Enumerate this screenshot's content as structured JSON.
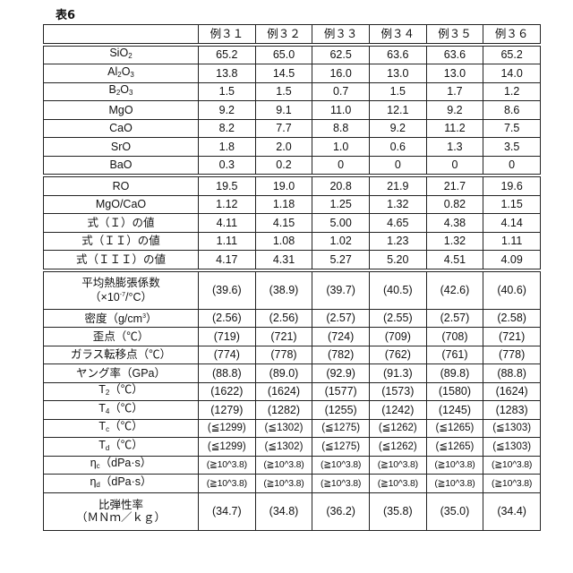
{
  "title": "表6",
  "columns": [
    "例３１",
    "例３２",
    "例３３",
    "例３４",
    "例３５",
    "例３６"
  ],
  "rows": [
    {
      "label": [
        [
          "SiO"
        ],
        [
          "2",
          "sub"
        ]
      ],
      "values": [
        "65.2",
        "65.0",
        "62.5",
        "63.6",
        "63.6",
        "65.2"
      ]
    },
    {
      "label": [
        [
          "Al"
        ],
        [
          "2",
          "sub"
        ],
        [
          "O"
        ],
        [
          "3",
          "sub"
        ]
      ],
      "values": [
        "13.8",
        "14.5",
        "16.0",
        "13.0",
        "13.0",
        "14.0"
      ]
    },
    {
      "label": [
        [
          "B"
        ],
        [
          "2",
          "sub"
        ],
        [
          "O"
        ],
        [
          "3",
          "sub"
        ]
      ],
      "values": [
        "1.5",
        "1.5",
        "0.7",
        "1.5",
        "1.7",
        "1.2"
      ]
    },
    {
      "label": [
        [
          "MgO"
        ]
      ],
      "values": [
        "9.2",
        "9.1",
        "11.0",
        "12.1",
        "9.2",
        "8.6"
      ]
    },
    {
      "label": [
        [
          "CaO"
        ]
      ],
      "values": [
        "8.2",
        "7.7",
        "8.8",
        "9.2",
        "11.2",
        "7.5"
      ]
    },
    {
      "label": [
        [
          "SrO"
        ]
      ],
      "values": [
        "1.8",
        "2.0",
        "1.0",
        "0.6",
        "1.3",
        "3.5"
      ]
    },
    {
      "label": [
        [
          "BaO"
        ]
      ],
      "values": [
        "0.3",
        "0.2",
        "0",
        "0",
        "0",
        "0"
      ]
    },
    {
      "label": [
        [
          "RO"
        ]
      ],
      "values": [
        "19.5",
        "19.0",
        "20.8",
        "21.9",
        "21.7",
        "19.6"
      ],
      "sep": true
    },
    {
      "label": [
        [
          "MgO/CaO"
        ]
      ],
      "values": [
        "1.12",
        "1.18",
        "1.25",
        "1.32",
        "0.82",
        "1.15"
      ]
    },
    {
      "label": [
        [
          "式（Ｉ）の値"
        ]
      ],
      "values": [
        "4.11",
        "4.15",
        "5.00",
        "4.65",
        "4.38",
        "4.14"
      ]
    },
    {
      "label": [
        [
          "式（ＩＩ）の値"
        ]
      ],
      "values": [
        "1.11",
        "1.08",
        "1.02",
        "1.23",
        "1.32",
        "1.11"
      ]
    },
    {
      "label": [
        [
          "式（ＩＩＩ）の値"
        ]
      ],
      "values": [
        "4.17",
        "4.31",
        "5.27",
        "5.20",
        "4.51",
        "4.09"
      ]
    },
    {
      "label": [
        [
          "平均熱膨張係数"
        ],
        [
          "",
          "br"
        ],
        [
          "（×10"
        ],
        [
          "-7",
          "sup"
        ],
        [
          "/°C）"
        ]
      ],
      "values": [
        "(39.6)",
        "(38.9)",
        "(39.7)",
        "(40.5)",
        "(42.6)",
        "(40.6)"
      ],
      "sep": true,
      "double": true
    },
    {
      "label": [
        [
          "密度（g/cm"
        ],
        [
          "3",
          "sup"
        ],
        [
          "）"
        ]
      ],
      "values": [
        "(2.56)",
        "(2.56)",
        "(2.57)",
        "(2.55)",
        "(2.57)",
        "(2.58)"
      ]
    },
    {
      "label": [
        [
          "歪点（℃）"
        ]
      ],
      "values": [
        "(719)",
        "(721)",
        "(724)",
        "(709)",
        "(708)",
        "(721)"
      ]
    },
    {
      "label": [
        [
          "ガラス転移点（℃）"
        ]
      ],
      "values": [
        "(774)",
        "(778)",
        "(782)",
        "(762)",
        "(761)",
        "(778)"
      ]
    },
    {
      "label": [
        [
          "ヤング率（GPa）"
        ]
      ],
      "values": [
        "(88.8)",
        "(89.0)",
        "(92.9)",
        "(91.3)",
        "(89.8)",
        "(88.8)"
      ]
    },
    {
      "label": [
        [
          "T"
        ],
        [
          "2",
          "sub"
        ],
        [
          "（℃）"
        ]
      ],
      "values": [
        "(1622)",
        "(1624)",
        "(1577)",
        "(1573)",
        "(1580)",
        "(1624)"
      ]
    },
    {
      "label": [
        [
          "T"
        ],
        [
          "4",
          "sub"
        ],
        [
          "（℃）"
        ]
      ],
      "values": [
        "(1279)",
        "(1282)",
        "(1255)",
        "(1242)",
        "(1245)",
        "(1283)"
      ]
    },
    {
      "label": [
        [
          "T"
        ],
        [
          "c",
          "sub"
        ],
        [
          "（℃）"
        ]
      ],
      "values": [
        "(≦1299)",
        "(≦1302)",
        "(≦1275)",
        "(≦1262)",
        "(≦1265)",
        "(≦1303)"
      ]
    },
    {
      "label": [
        [
          "T"
        ],
        [
          "d",
          "sub"
        ],
        [
          "（℃）"
        ]
      ],
      "values": [
        "(≦1299)",
        "(≦1302)",
        "(≦1275)",
        "(≦1262)",
        "(≦1265)",
        "(≦1303)"
      ]
    },
    {
      "label": [
        [
          "η"
        ],
        [
          "c",
          "sub"
        ],
        [
          "（dPa·s）"
        ]
      ],
      "values": [
        "(≧10^3.8)",
        "(≧10^3.8)",
        "(≧10^3.8)",
        "(≧10^3.8)",
        "(≧10^3.8)",
        "(≧10^3.8)"
      ]
    },
    {
      "label": [
        [
          "η"
        ],
        [
          "d",
          "sub"
        ],
        [
          "（dPa·s）"
        ]
      ],
      "values": [
        "(≧10^3.8)",
        "(≧10^3.8)",
        "(≧10^3.8)",
        "(≧10^3.8)",
        "(≧10^3.8)",
        "(≧10^3.8)"
      ]
    },
    {
      "label": [
        [
          "比弾性率"
        ],
        [
          "",
          "br"
        ],
        [
          "（ＭＮｍ／ｋｇ）"
        ]
      ],
      "values": [
        "(34.7)",
        "(34.8)",
        "(36.2)",
        "(35.8)",
        "(35.0)",
        "(34.4)"
      ],
      "double": true
    }
  ]
}
